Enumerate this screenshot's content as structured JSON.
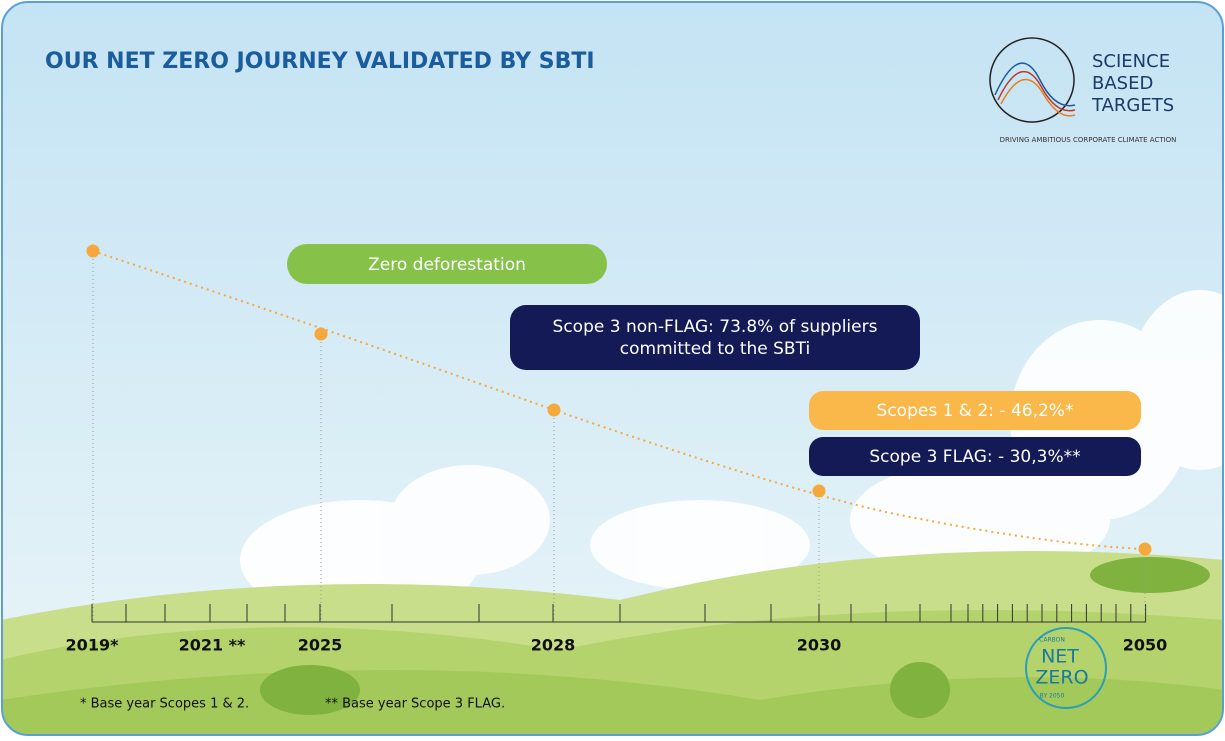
{
  "header": {
    "title": "OUR NET ZERO JOURNEY VALIDATED BY SBTI"
  },
  "logo": {
    "lines": [
      "SCIENCE",
      "BASED",
      "TARGETS"
    ],
    "tagline": "DRIVING AMBITIOUS CORPORATE CLIMATE ACTION"
  },
  "timeline": {
    "labels": [
      "2019*",
      "2021 **",
      "2025",
      "2028",
      "2030",
      "2050"
    ]
  },
  "milestones": [
    {
      "lines": [
        "Zero deforestation"
      ]
    },
    {
      "lines": [
        "Scope 3 non-FLAG: 73.8% of suppliers",
        "committed to the SBTi"
      ]
    },
    {
      "lines": [
        "Scopes 1 & 2: - 46,2%*"
      ]
    },
    {
      "lines": [
        "Scope 3 FLAG: - 30,3%**"
      ]
    }
  ],
  "footnotes": [
    "*  Base year Scopes 1 & 2.",
    "**  Base year Scope 3 FLAG."
  ],
  "badge": {
    "top": "CARBON",
    "main": [
      "NET",
      "ZERO"
    ],
    "bottom": "BY 2050"
  }
}
